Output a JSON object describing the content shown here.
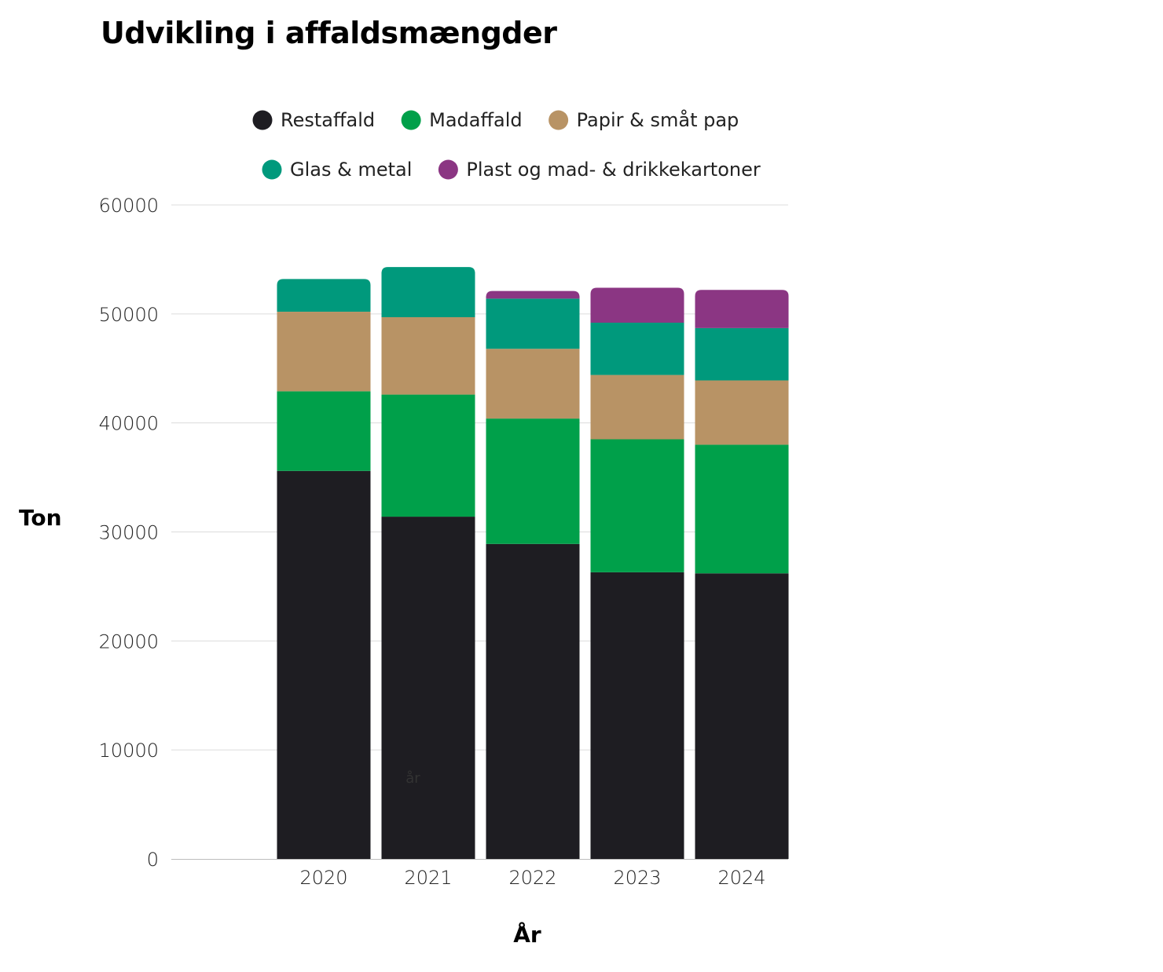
{
  "chart_data": {
    "type": "bar",
    "stacked": true,
    "title": "Udvikling i affaldsmængder",
    "xlabel": "År",
    "ylabel": "Ton",
    "ylim": [
      0,
      60000
    ],
    "yticks": [
      0,
      10000,
      20000,
      30000,
      40000,
      50000,
      60000
    ],
    "grid": true,
    "legend_position": "top",
    "categories": [
      "2020",
      "2021",
      "2022",
      "2023",
      "2024"
    ],
    "series": [
      {
        "name": "Restaffald",
        "color": "#1e1d22",
        "values": [
          35600,
          31400,
          28900,
          26300,
          26200
        ]
      },
      {
        "name": "Madaffald",
        "color": "#00a04a",
        "values": [
          7300,
          11200,
          11500,
          12200,
          11800
        ]
      },
      {
        "name": "Papir & småt pap",
        "color": "#b89365",
        "values": [
          7300,
          7100,
          6400,
          5900,
          5900
        ]
      },
      {
        "name": "Glas & metal",
        "color": "#00997c",
        "values": [
          3000,
          4600,
          4600,
          4800,
          4800
        ]
      },
      {
        "name": "Plast og mad- & drikkekartoner",
        "color": "#8b3683",
        "values": [
          0,
          0,
          700,
          3200,
          3500
        ]
      }
    ],
    "annotations": [
      {
        "text": "år",
        "x": "2021",
        "y": 7000
      }
    ]
  }
}
